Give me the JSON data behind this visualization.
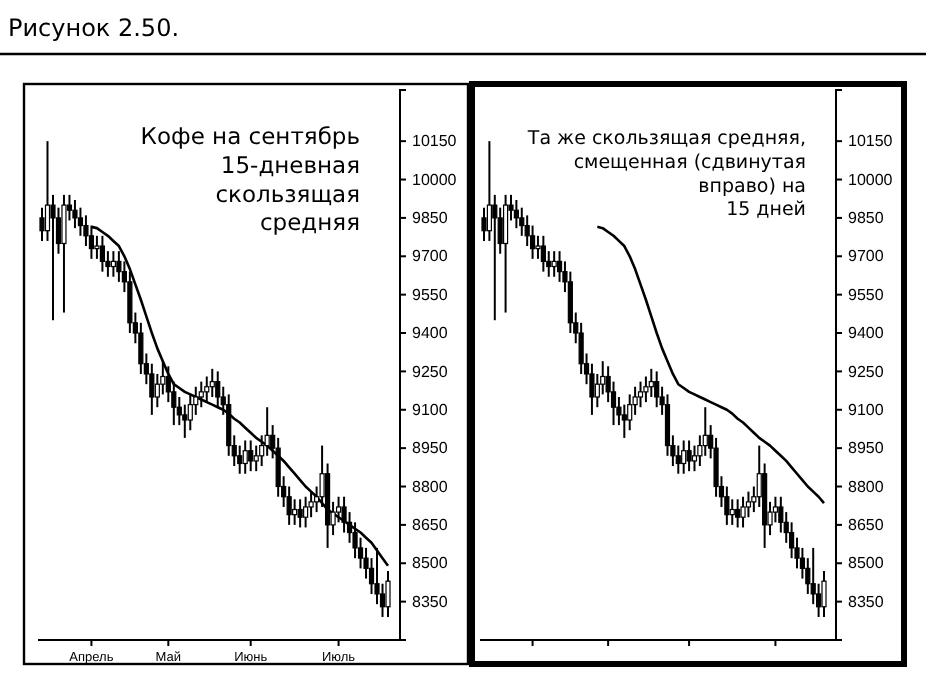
{
  "chart_data": [
    {
      "type": "candlestick",
      "title": "Рисунок 2.50.",
      "color": "#000000",
      "categories": [
        null,
        null,
        null,
        null,
        null,
        null,
        null,
        null,
        null,
        "Апрель",
        null,
        null,
        null,
        null,
        null,
        null,
        null,
        null,
        null,
        null,
        null,
        null,
        null,
        "Май",
        null,
        null,
        null,
        null,
        null,
        null,
        null,
        null,
        null,
        null,
        null,
        null,
        null,
        null,
        "Июнь",
        null,
        null,
        null,
        null,
        null,
        null,
        null,
        null,
        null,
        null,
        null,
        null,
        null,
        null,
        null,
        "Июль",
        null,
        null,
        null,
        null,
        null,
        null,
        null,
        null,
        null
      ],
      "ohlc": [
        [
          9850,
          9890,
          9760,
          9800
        ],
        [
          9800,
          10150,
          9760,
          9900
        ],
        [
          9900,
          9940,
          9450,
          9850
        ],
        [
          9850,
          9890,
          9710,
          9750
        ],
        [
          9750,
          9940,
          9480,
          9900
        ],
        [
          9900,
          9940,
          9840,
          9880
        ],
        [
          9880,
          9920,
          9810,
          9850
        ],
        [
          9850,
          9890,
          9780,
          9820
        ],
        [
          9820,
          9860,
          9740,
          9780
        ],
        [
          9780,
          9820,
          9690,
          9730
        ],
        [
          9730,
          9780,
          9690,
          9740
        ],
        [
          9740,
          9780,
          9640,
          9680
        ],
        [
          9680,
          9720,
          9620,
          9660
        ],
        [
          9660,
          9720,
          9620,
          9680
        ],
        [
          9680,
          9720,
          9600,
          9640
        ],
        [
          9640,
          9680,
          9560,
          9600
        ],
        [
          9600,
          9640,
          9400,
          9440
        ],
        [
          9440,
          9480,
          9360,
          9400
        ],
        [
          9400,
          9440,
          9240,
          9280
        ],
        [
          9280,
          9320,
          9200,
          9240
        ],
        [
          9240,
          9280,
          9080,
          9150
        ],
        [
          9150,
          9240,
          9110,
          9200
        ],
        [
          9200,
          9290,
          9160,
          9230
        ],
        [
          9230,
          9270,
          9130,
          9170
        ],
        [
          9170,
          9210,
          9040,
          9110
        ],
        [
          9110,
          9150,
          9040,
          9080
        ],
        [
          9080,
          9120,
          8990,
          9060
        ],
        [
          9060,
          9160,
          9020,
          9120
        ],
        [
          9120,
          9190,
          9080,
          9150
        ],
        [
          9150,
          9210,
          9110,
          9170
        ],
        [
          9170,
          9230,
          9130,
          9190
        ],
        [
          9190,
          9260,
          9150,
          9210
        ],
        [
          9210,
          9250,
          9110,
          9150
        ],
        [
          9150,
          9190,
          9080,
          9120
        ],
        [
          9120,
          9160,
          8920,
          8960
        ],
        [
          8960,
          9000,
          8880,
          8920
        ],
        [
          8920,
          8960,
          8850,
          8890
        ],
        [
          8890,
          8980,
          8850,
          8940
        ],
        [
          8940,
          8980,
          8860,
          8900
        ],
        [
          8900,
          8960,
          8860,
          8920
        ],
        [
          8920,
          9000,
          8880,
          8960
        ],
        [
          8960,
          9110,
          8920,
          9000
        ],
        [
          9000,
          9040,
          8910,
          8950
        ],
        [
          8950,
          8990,
          8760,
          8800
        ],
        [
          8800,
          8840,
          8720,
          8760
        ],
        [
          8760,
          8800,
          8650,
          8690
        ],
        [
          8690,
          8750,
          8650,
          8710
        ],
        [
          8710,
          8750,
          8640,
          8680
        ],
        [
          8680,
          8760,
          8640,
          8720
        ],
        [
          8720,
          8780,
          8680,
          8740
        ],
        [
          8740,
          8800,
          8700,
          8760
        ],
        [
          8760,
          8960,
          8720,
          8850
        ],
        [
          8850,
          8890,
          8560,
          8650
        ],
        [
          8650,
          8740,
          8610,
          8700
        ],
        [
          8700,
          8760,
          8660,
          8720
        ],
        [
          8720,
          8760,
          8620,
          8660
        ],
        [
          8660,
          8700,
          8580,
          8620
        ],
        [
          8620,
          8660,
          8520,
          8560
        ],
        [
          8560,
          8600,
          8480,
          8520
        ],
        [
          8520,
          8560,
          8440,
          8480
        ],
        [
          8480,
          8520,
          8380,
          8420
        ],
        [
          8420,
          8560,
          8340,
          8380
        ],
        [
          8380,
          8420,
          8290,
          8330
        ],
        [
          8330,
          8470,
          8290,
          8430
        ]
      ],
      "series": [
        {
          "type": "line",
          "color": "#000000",
          "values": [
            null,
            null,
            null,
            null,
            null,
            null,
            null,
            null,
            null,
            9815,
            9810,
            9795,
            9780,
            9760,
            9740,
            9700,
            9650,
            9590,
            9530,
            9465,
            9400,
            9340,
            9290,
            9240,
            9200,
            9185,
            9170,
            9160,
            9150,
            9140,
            9130,
            9120,
            9110,
            9100,
            9085,
            9065,
            9050,
            9030,
            9010,
            8990,
            8975,
            8960,
            8940,
            8920,
            8900,
            8875,
            8850,
            8825,
            8800,
            8780,
            8760,
            8735,
            8710,
            8695,
            8680,
            8665,
            8650,
            8635,
            8620,
            8600,
            8580,
            8550,
            8520,
            8490
          ]
        }
      ],
      "ylim": [
        8200,
        10350
      ],
      "yticks": [
        10150,
        10000,
        9850,
        9700,
        9550,
        9400,
        9250,
        9100,
        8950,
        8800,
        8650,
        8500,
        8350
      ],
      "annotations": [
        "Кофе на сентябрь\n15-дневная\nскользящая\nсредняя"
      ]
    },
    {
      "type": "candlestick",
      "color": "#000000",
      "categories": [
        null,
        null,
        null,
        null,
        null,
        null,
        null,
        null,
        null,
        null,
        null,
        null,
        null,
        null,
        null,
        null,
        null,
        null,
        null,
        null,
        null,
        null,
        null,
        null,
        null,
        null,
        null,
        null,
        null,
        null,
        null,
        null,
        null,
        null,
        null,
        null,
        null,
        null,
        null,
        null,
        null,
        null,
        null,
        null,
        null,
        null,
        null,
        null,
        null,
        null,
        null,
        null,
        null,
        null,
        null,
        null,
        null,
        null,
        null,
        null,
        null,
        null,
        null,
        null
      ],
      "ohlc": [
        [
          9850,
          9890,
          9760,
          9800
        ],
        [
          9800,
          10150,
          9760,
          9900
        ],
        [
          9900,
          9940,
          9450,
          9850
        ],
        [
          9850,
          9890,
          9710,
          9750
        ],
        [
          9750,
          9940,
          9480,
          9900
        ],
        [
          9900,
          9940,
          9840,
          9880
        ],
        [
          9880,
          9920,
          9810,
          9850
        ],
        [
          9850,
          9890,
          9780,
          9820
        ],
        [
          9820,
          9860,
          9740,
          9780
        ],
        [
          9780,
          9820,
          9690,
          9730
        ],
        [
          9730,
          9780,
          9690,
          9740
        ],
        [
          9740,
          9780,
          9640,
          9680
        ],
        [
          9680,
          9720,
          9620,
          9660
        ],
        [
          9660,
          9720,
          9620,
          9680
        ],
        [
          9680,
          9720,
          9600,
          9640
        ],
        [
          9640,
          9680,
          9560,
          9600
        ],
        [
          9600,
          9640,
          9400,
          9440
        ],
        [
          9440,
          9480,
          9360,
          9400
        ],
        [
          9400,
          9440,
          9240,
          9280
        ],
        [
          9280,
          9320,
          9200,
          9240
        ],
        [
          9240,
          9280,
          9080,
          9150
        ],
        [
          9150,
          9240,
          9110,
          9200
        ],
        [
          9200,
          9290,
          9160,
          9230
        ],
        [
          9230,
          9270,
          9130,
          9170
        ],
        [
          9170,
          9210,
          9040,
          9110
        ],
        [
          9110,
          9150,
          9040,
          9080
        ],
        [
          9080,
          9120,
          8990,
          9060
        ],
        [
          9060,
          9160,
          9020,
          9120
        ],
        [
          9120,
          9190,
          9080,
          9150
        ],
        [
          9150,
          9210,
          9110,
          9170
        ],
        [
          9170,
          9230,
          9130,
          9190
        ],
        [
          9190,
          9260,
          9150,
          9210
        ],
        [
          9210,
          9250,
          9110,
          9150
        ],
        [
          9150,
          9190,
          9080,
          9120
        ],
        [
          9120,
          9160,
          8920,
          8960
        ],
        [
          8960,
          9000,
          8880,
          8920
        ],
        [
          8920,
          8960,
          8850,
          8890
        ],
        [
          8890,
          8980,
          8850,
          8940
        ],
        [
          8940,
          8980,
          8860,
          8900
        ],
        [
          8900,
          8960,
          8860,
          8920
        ],
        [
          8920,
          9000,
          8880,
          8960
        ],
        [
          8960,
          9110,
          8920,
          9000
        ],
        [
          9000,
          9040,
          8910,
          8950
        ],
        [
          8950,
          8990,
          8760,
          8800
        ],
        [
          8800,
          8840,
          8720,
          8760
        ],
        [
          8760,
          8800,
          8650,
          8690
        ],
        [
          8690,
          8750,
          8650,
          8710
        ],
        [
          8710,
          8750,
          8640,
          8680
        ],
        [
          8680,
          8760,
          8640,
          8720
        ],
        [
          8720,
          8780,
          8680,
          8740
        ],
        [
          8740,
          8800,
          8700,
          8760
        ],
        [
          8760,
          8960,
          8720,
          8850
        ],
        [
          8850,
          8890,
          8560,
          8650
        ],
        [
          8650,
          8740,
          8610,
          8700
        ],
        [
          8700,
          8760,
          8660,
          8720
        ],
        [
          8720,
          8760,
          8620,
          8660
        ],
        [
          8660,
          8700,
          8580,
          8620
        ],
        [
          8620,
          8660,
          8520,
          8560
        ],
        [
          8560,
          8600,
          8480,
          8520
        ],
        [
          8520,
          8560,
          8440,
          8480
        ],
        [
          8480,
          8520,
          8380,
          8420
        ],
        [
          8420,
          8560,
          8340,
          8380
        ],
        [
          8380,
          8420,
          8290,
          8330
        ],
        [
          8330,
          8470,
          8290,
          8430
        ]
      ],
      "series": [
        {
          "type": "line",
          "color": "#000000",
          "values": [
            null,
            null,
            null,
            null,
            null,
            null,
            null,
            null,
            null,
            null,
            null,
            null,
            null,
            null,
            null,
            null,
            null,
            null,
            null,
            null,
            null,
            9815,
            9810,
            9795,
            9780,
            9760,
            9740,
            9700,
            9650,
            9590,
            9530,
            9465,
            9400,
            9340,
            9290,
            9240,
            9200,
            9185,
            9170,
            9160,
            9150,
            9140,
            9130,
            9120,
            9110,
            9100,
            9085,
            9065,
            9050,
            9030,
            9010,
            8990,
            8975,
            8960,
            8940,
            8920,
            8900,
            8875,
            8850,
            8825,
            8800,
            8780,
            8760,
            8735
          ]
        }
      ],
      "ylim": [
        8200,
        10350
      ],
      "yticks": [
        10150,
        10000,
        9850,
        9700,
        9550,
        9400,
        9250,
        9100,
        8950,
        8800,
        8650,
        8500,
        8350
      ],
      "annotations": [
        "Та же скользящая средняя,\nсмещенная (сдвинутая\nвправо) на\n15 дней"
      ]
    }
  ]
}
